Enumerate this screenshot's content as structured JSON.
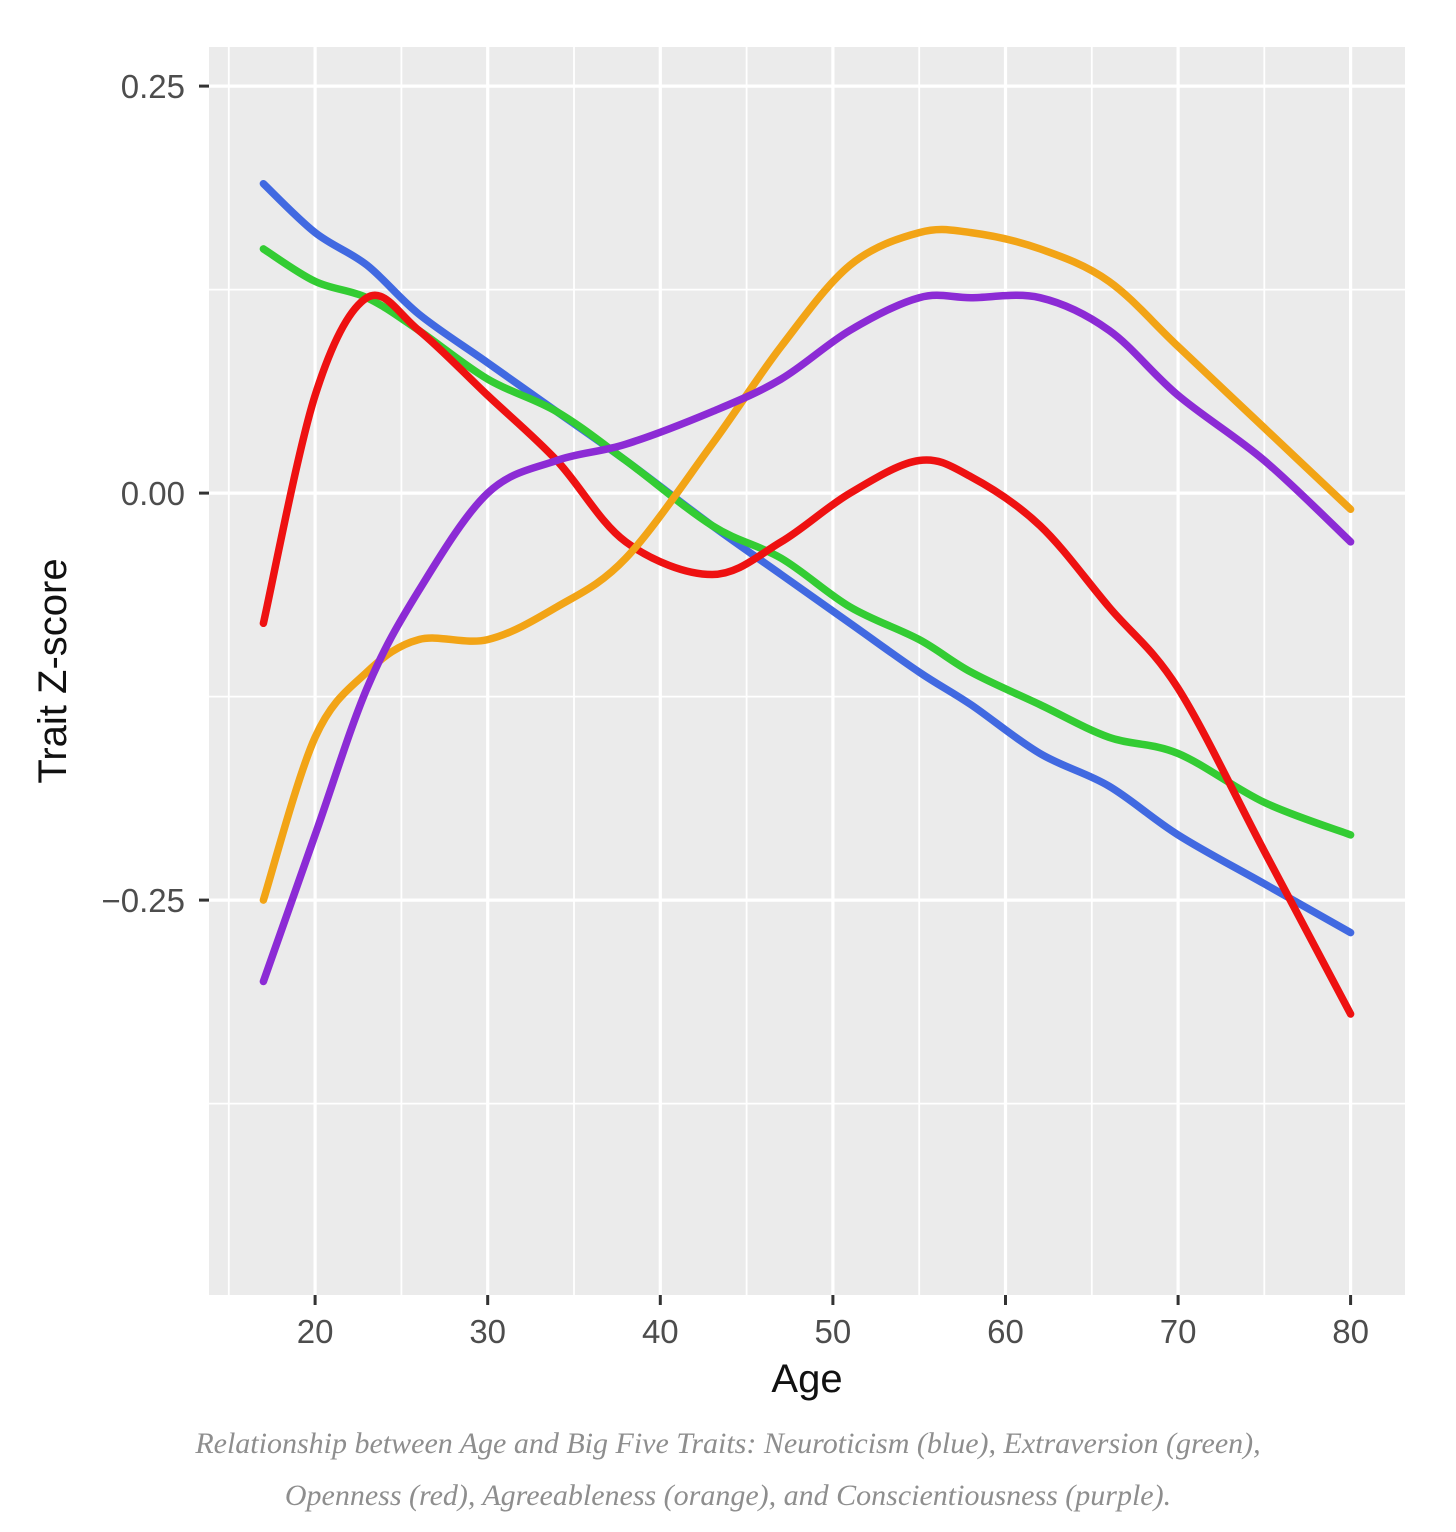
{
  "figure": {
    "caption": {
      "line1": "Relationship between Age and Big Five Traits: Neuroticism (blue), Extraversion (green),",
      "line2": "Openness (red), Agreeableness (orange), and Conscientiousness (purple)."
    }
  },
  "chart_data": {
    "type": "line",
    "title": "",
    "xlabel": "Age",
    "ylabel": "Trait Z-score",
    "grid": true,
    "legend": "none",
    "panel_bg": "#EBEBEB",
    "grid_color": "#FFFFFF",
    "tick_label_color": "#4D4D4D",
    "xlim": [
      13.85,
      83.15
    ],
    "ylim": [
      -0.4926,
      0.274
    ],
    "x_ticks": [
      20,
      30,
      40,
      50,
      60,
      70,
      80
    ],
    "x_minor_ticks": [
      15,
      25,
      35,
      45,
      55,
      65,
      75
    ],
    "y_ticks": [
      {
        "value": 0.25,
        "label": "0.25"
      },
      {
        "value": 0.0,
        "label": "0.00"
      },
      {
        "value": -0.25,
        "label": "−0.25"
      }
    ],
    "y_minor_ticks": [
      0.125,
      -0.125,
      -0.375
    ],
    "x": [
      17,
      20,
      23,
      26,
      30,
      34,
      38,
      43,
      47,
      51,
      55,
      58,
      62,
      66,
      70,
      75,
      80
    ],
    "series": [
      {
        "name": "Neuroticism",
        "color_word": "blue",
        "color": "#4169E1",
        "values": [
          0.19,
          0.16,
          0.14,
          0.11,
          0.08,
          0.05,
          0.02,
          -0.02,
          -0.05,
          -0.08,
          -0.11,
          -0.13,
          -0.16,
          -0.18,
          -0.21,
          -0.24,
          -0.27
        ]
      },
      {
        "name": "Extraversion",
        "color_word": "green",
        "color": "#33CC33",
        "values": [
          0.15,
          0.13,
          0.12,
          0.1,
          0.07,
          0.05,
          0.02,
          -0.02,
          -0.04,
          -0.07,
          -0.09,
          -0.11,
          -0.13,
          -0.15,
          -0.16,
          -0.19,
          -0.21
        ]
      },
      {
        "name": "Openness",
        "color_word": "red",
        "color": "#EE1111",
        "values": [
          -0.08,
          0.06,
          0.12,
          0.1,
          0.06,
          0.02,
          -0.03,
          -0.05,
          -0.03,
          0.0,
          0.02,
          0.01,
          -0.02,
          -0.07,
          -0.12,
          -0.22,
          -0.32
        ]
      },
      {
        "name": "Agreeableness",
        "color_word": "orange",
        "color": "#F2A416",
        "values": [
          -0.25,
          -0.15,
          -0.11,
          -0.09,
          -0.09,
          -0.07,
          -0.04,
          0.03,
          0.09,
          0.14,
          0.16,
          0.16,
          0.15,
          0.13,
          0.09,
          0.04,
          -0.01
        ]
      },
      {
        "name": "Conscientiousness",
        "color_word": "purple",
        "color": "#8C2BD5",
        "values": [
          -0.3,
          -0.21,
          -0.12,
          -0.06,
          0.0,
          0.02,
          0.03,
          0.05,
          0.07,
          0.1,
          0.12,
          0.12,
          0.12,
          0.1,
          0.06,
          0.02,
          -0.03
        ]
      }
    ]
  }
}
